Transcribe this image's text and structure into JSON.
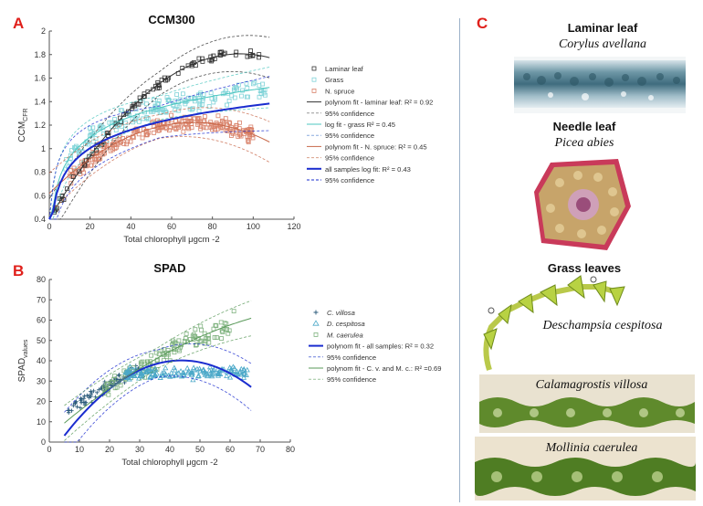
{
  "panels": {
    "a": "A",
    "b": "B",
    "c": "C"
  },
  "chart_data": [
    {
      "type": "scatter",
      "title": "CCM300",
      "xlabel": "Total chlorophyll μgcm -2",
      "ylabel": "CCM",
      "ylabel_sub": "CFR",
      "xlim": [
        0,
        120
      ],
      "ylim": [
        0.4,
        2
      ],
      "xticks": [
        "0",
        "20",
        "40",
        "60",
        "80",
        "100",
        "120"
      ],
      "yticks": [
        "0.4",
        "0.6",
        "0.8",
        "1",
        "1.2",
        "1.4",
        "1.6",
        "1.8",
        "2"
      ],
      "legend": [
        "Laminar leaf",
        "Grass",
        "N. spruce",
        "polynom fit - laminar leaf: R² = 0.92",
        "95% confidence",
        "log fit - grass R² = 0.45",
        "95% confidence",
        "polynom fit - N. spruce: R² = 0.45",
        "95% confidence",
        "all samples log fit: R² = 0.43",
        "95% confidence"
      ],
      "series": [
        {
          "name": "Laminar leaf",
          "marker": "square",
          "color": "#333333"
        },
        {
          "name": "Grass",
          "marker": "square",
          "color": "#7fd3d8"
        },
        {
          "name": "N. spruce",
          "marker": "square",
          "color": "#d9826a"
        }
      ],
      "fits": {
        "laminar": {
          "type": "poly",
          "coef": [
            0.4,
            0.03,
            -0.00016
          ],
          "x": [
            0,
            108
          ],
          "color": "#333333"
        },
        "grass": {
          "type": "log",
          "a": 0.35,
          "b": 0.25,
          "x": [
            0,
            108
          ],
          "color": "#4cc7c0"
        },
        "spruce": {
          "type": "poly",
          "coef": [
            0.62,
            0.017,
            -0.00012
          ],
          "x": [
            0,
            108
          ],
          "color": "#c96a4c"
        },
        "all": {
          "type": "log",
          "a": 0.33,
          "b": 0.225,
          "x": [
            0,
            108
          ],
          "color": "#1a2ccf"
        }
      }
    },
    {
      "type": "scatter",
      "title": "SPAD",
      "xlabel": "Total chlorophyll μgcm -2",
      "ylabel": "SPAD",
      "ylabel_sub": "values",
      "xlim": [
        0,
        80
      ],
      "ylim": [
        0,
        80
      ],
      "xticks": [
        "0",
        "10",
        "20",
        "30",
        "40",
        "50",
        "60",
        "70",
        "80"
      ],
      "yticks": [
        "0",
        "10",
        "20",
        "30",
        "40",
        "50",
        "60",
        "70",
        "80"
      ],
      "legend": [
        "C. villosa",
        "D. cespitosa",
        "M. caerulea",
        "polynom fit - all samples: R² = 0.32",
        "95% confidence",
        "polynom fit - C. v. and M. c.: R² =0.69",
        "95% confidence"
      ],
      "series": [
        {
          "name": "C. villosa",
          "marker": "plus",
          "color": "#2a5a7a"
        },
        {
          "name": "D. cespitosa",
          "marker": "triangle",
          "color": "#4aa8c8"
        },
        {
          "name": "M. caerulea",
          "marker": "square",
          "color": "#7fb27f"
        }
      ],
      "fits": {
        "all": {
          "type": "poly",
          "coef": [
            -7,
            2.15,
            -0.0245
          ],
          "x": [
            5,
            67
          ],
          "color": "#1a2ccf"
        },
        "cvmc": {
          "type": "poly",
          "coef": [
            3,
            1.3,
            -0.0065
          ],
          "x": [
            5,
            67
          ],
          "color": "#5a9a5a"
        }
      }
    }
  ],
  "panel_c": {
    "laminar_title": "Laminar leaf",
    "laminar_species": "Corylus avellana",
    "needle_title": "Needle leaf",
    "needle_species": "Picea abies",
    "grass_title": "Grass leaves",
    "grass_species_1": "Deschampsia cespitosa",
    "grass_species_2": "Calamagrostis villosa",
    "grass_species_3": "Mollinia caerulea"
  }
}
